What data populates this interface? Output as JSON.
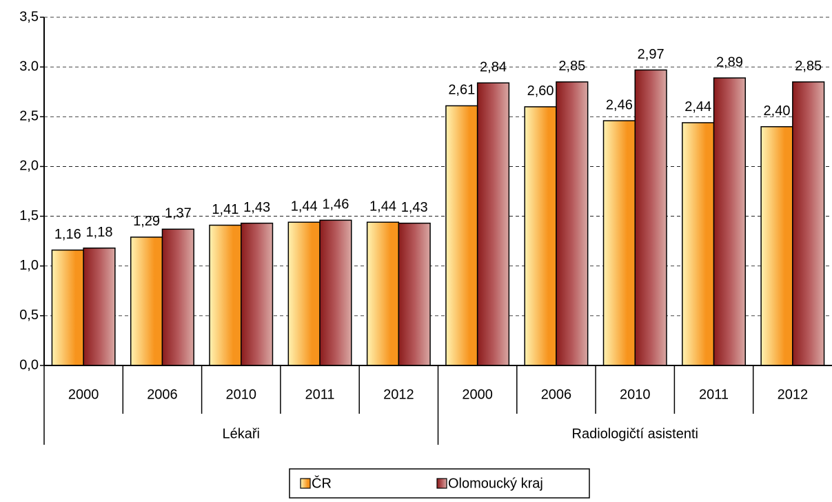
{
  "chart_data": {
    "type": "bar",
    "groups": [
      {
        "name": "Lékaři",
        "categories": [
          "2000",
          "2006",
          "2010",
          "2011",
          "2012"
        ]
      },
      {
        "name": "Radiologičtí asistenti",
        "categories": [
          "2000",
          "2006",
          "2010",
          "2011",
          "2012"
        ]
      }
    ],
    "series": [
      {
        "name": "ČR",
        "color": "#f7941d",
        "values": [
          1.16,
          1.29,
          1.41,
          1.44,
          1.44,
          2.61,
          2.6,
          2.46,
          2.44,
          2.4
        ],
        "value_labels": [
          "1,16",
          "1,29",
          "1,41",
          "1,44",
          "1,44",
          "2,61",
          "2,60",
          "2,46",
          "2,44",
          "2,40"
        ]
      },
      {
        "name": "Olomoucký kraj",
        "color": "#8b1c1c",
        "values": [
          1.18,
          1.37,
          1.43,
          1.46,
          1.43,
          2.84,
          2.85,
          2.97,
          2.89,
          2.85
        ],
        "value_labels": [
          "1,18",
          "1,37",
          "1,43",
          "1,46",
          "1,43",
          "2,84",
          "2,85",
          "2,97",
          "2,89",
          "2,85"
        ]
      }
    ],
    "ylim": [
      0,
      3.5
    ],
    "yticks": [
      {
        "value": 0,
        "label": "0,0"
      },
      {
        "value": 0.5,
        "label": "0,5"
      },
      {
        "value": 1,
        "label": "1,0"
      },
      {
        "value": 1.5,
        "label": "1,5"
      },
      {
        "value": 2,
        "label": "2,0"
      },
      {
        "value": 2.5,
        "label": "2,5"
      },
      {
        "value": 3,
        "label": "3.0"
      },
      {
        "value": 3.5,
        "label": "3,5"
      }
    ],
    "grid": true
  }
}
